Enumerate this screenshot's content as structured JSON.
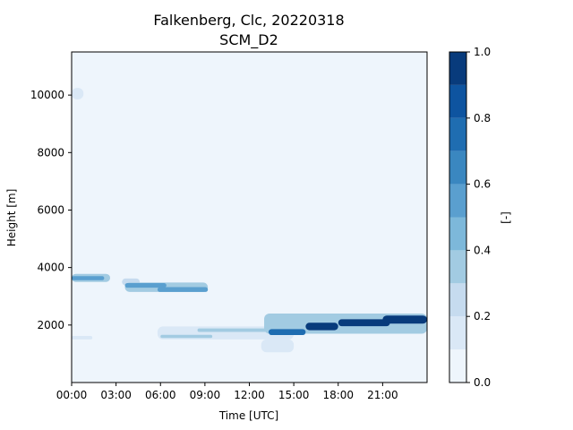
{
  "chart_data": {
    "type": "heatmap",
    "title": "Falkenberg, Clc, 20220318",
    "subtitle": "SCM_D2",
    "xlabel": "Time [UTC]",
    "ylabel": "Height [m]",
    "colorbar_label": "[-]",
    "xlim": [
      0,
      24
    ],
    "ylim": [
      0,
      11500
    ],
    "x_ticks": [
      {
        "value": 0,
        "label": "00:00"
      },
      {
        "value": 3,
        "label": "03:00"
      },
      {
        "value": 6,
        "label": "06:00"
      },
      {
        "value": 9,
        "label": "09:00"
      },
      {
        "value": 12,
        "label": "12:00"
      },
      {
        "value": 15,
        "label": "15:00"
      },
      {
        "value": 18,
        "label": "18:00"
      },
      {
        "value": 21,
        "label": "21:00"
      }
    ],
    "y_ticks": [
      {
        "value": 2000,
        "label": "2000"
      },
      {
        "value": 4000,
        "label": "4000"
      },
      {
        "value": 6000,
        "label": "6000"
      },
      {
        "value": 8000,
        "label": "8000"
      },
      {
        "value": 10000,
        "label": "10000"
      }
    ],
    "colorbar": {
      "range": [
        0,
        1
      ],
      "levels": [
        0.0,
        0.1,
        0.2,
        0.3,
        0.4,
        0.5,
        0.6,
        0.7,
        0.8,
        0.9,
        1.0
      ],
      "colors": [
        "#eef5fc",
        "#dae8f6",
        "#c6dbef",
        "#a2cbe2",
        "#7db8da",
        "#5a9fcf",
        "#3a87c0",
        "#1f6db1",
        "#0e54a0",
        "#083b7c"
      ],
      "ticks": [
        {
          "value": 0.0,
          "label": "0.0"
        },
        {
          "value": 0.2,
          "label": "0.2"
        },
        {
          "value": 0.4,
          "label": "0.4"
        },
        {
          "value": 0.6,
          "label": "0.6"
        },
        {
          "value": 0.8,
          "label": "0.8"
        },
        {
          "value": 1.0,
          "label": "1.0"
        }
      ]
    },
    "cloud_features": [
      {
        "t0": 0.0,
        "t1": 0.8,
        "h0": 9850,
        "h1": 10250,
        "value": 0.15
      },
      {
        "t0": 0.0,
        "t1": 2.6,
        "h0": 3500,
        "h1": 3780,
        "value": 0.35
      },
      {
        "t0": 0.0,
        "t1": 2.2,
        "h0": 3560,
        "h1": 3700,
        "value": 0.6
      },
      {
        "t0": 3.4,
        "t1": 4.6,
        "h0": 3380,
        "h1": 3620,
        "value": 0.3
      },
      {
        "t0": 3.6,
        "t1": 9.2,
        "h0": 3150,
        "h1": 3480,
        "value": 0.35
      },
      {
        "t0": 3.6,
        "t1": 6.4,
        "h0": 3300,
        "h1": 3460,
        "value": 0.6
      },
      {
        "t0": 5.8,
        "t1": 9.2,
        "h0": 3150,
        "h1": 3320,
        "value": 0.55
      },
      {
        "t0": 0.0,
        "t1": 1.4,
        "h0": 1500,
        "h1": 1620,
        "value": 0.2
      },
      {
        "t0": 5.8,
        "t1": 15.0,
        "h0": 1500,
        "h1": 1950,
        "value": 0.2
      },
      {
        "t0": 6.0,
        "t1": 9.5,
        "h0": 1550,
        "h1": 1660,
        "value": 0.4
      },
      {
        "t0": 12.8,
        "t1": 15.0,
        "h0": 1050,
        "h1": 1500,
        "value": 0.15
      },
      {
        "t0": 8.5,
        "t1": 15.2,
        "h0": 1760,
        "h1": 1880,
        "value": 0.35
      },
      {
        "t0": 13.0,
        "t1": 24.0,
        "h0": 1700,
        "h1": 2400,
        "value": 0.35
      },
      {
        "t0": 13.3,
        "t1": 15.8,
        "h0": 1650,
        "h1": 1860,
        "value": 0.75
      },
      {
        "t0": 15.8,
        "t1": 18.0,
        "h0": 1820,
        "h1": 2080,
        "value": 0.92
      },
      {
        "t0": 18.0,
        "t1": 21.5,
        "h0": 1960,
        "h1": 2200,
        "value": 0.92
      },
      {
        "t0": 21.0,
        "t1": 24.0,
        "h0": 2050,
        "h1": 2330,
        "value": 0.95
      }
    ]
  }
}
